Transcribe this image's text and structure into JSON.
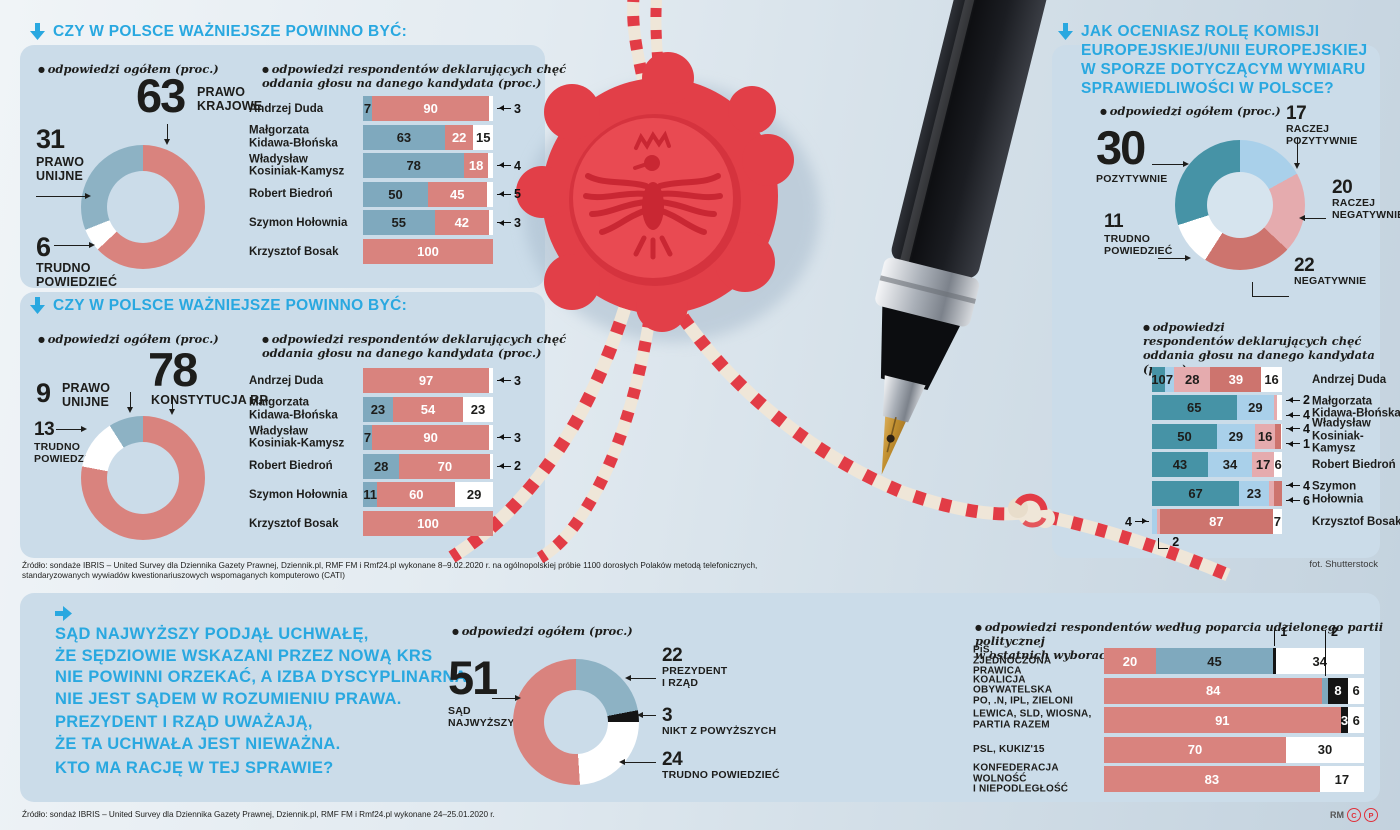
{
  "sections": {
    "law1": {
      "title": "CZY W POLSCE WAŻNIEJSZE POWINNO BYĆ:",
      "overall_note": "odpowiedzi ogółem (proc.)",
      "respondents_note": "odpowiedzi respondentów deklarujących chęć\noddania głosu na danego kandydata (proc.)"
    },
    "law2": {
      "title": "CZY W POLSCE WAŻNIEJSZE POWINNO BYĆ:",
      "overall_note": "odpowiedzi ogółem (proc.)",
      "respondents_note": "odpowiedzi respondentów deklarujących chęć\noddania głosu na danego kandydata (proc.)"
    },
    "eu": {
      "title": "JAK OCENIASZ ROLĘ KOMISJI\nEUROPEJSKIEJ/UNII EUROPEJSKIEJ\nW SPORZE DOTYCZĄCYM WYMIARU\nSPRAWIEDLIWOŚCI W POLSCE?",
      "overall_note": "odpowiedzi ogółem (proc.)",
      "respondents_note": "odpowiedzi\nrespondentów deklarujących chęć\noddania głosu na danego kandydata (proc.)"
    },
    "court": {
      "statement1": "SĄD NAJWYŻSZY PODJĄŁ UCHWAŁĘ,\nŻE SĘDZIOWIE WSKAZANI PRZEZ NOWĄ KRS\nNIE POWINNI ORZEKAĆ, A IZBA DYSCYPLINARNA\nNIE JEST SĄDEM W ROZUMIENIU PRAWA.",
      "statement2": "PREZYDENT I RZĄD UWAŻAJĄ,\nŻE TA UCHWAŁA JEST NIEWAŻNA.",
      "question": "KTO MA RACJĘ W TEJ SPRAWIE?",
      "overall_note": "odpowiedzi ogółem (proc.)",
      "party_note": "odpowiedzi respondentów według poparcia udzielonego partii politycznej\nw ostatnich wyborach do Sejmu – 13.10.2019 r. (proc.)"
    }
  },
  "footer": {
    "source1": "Źródło: sondaże IBRIS – United Survey dla Dziennika Gazety Prawnej, Dziennik.pl, RMF FM i Rmf24.pl wykonane 8–9.02.2020 r. na ogólnopolskiej próbie 1100 dorosłych Polaków metodą telefonicznych,\nstandaryzowanych wywiadów kwestionariuszowych wspomaganych komputerowo (CATI)",
    "photo_credit": "fot. Shutterstock",
    "source2": "Źródło: sondaż IBRIS – United Survey dla Dziennika Gazety Prawnej, Dziennik.pl, RMF FM i Rmf24.pl wykonane 24–25.01.2020 r.",
    "rm": "RM",
    "c_mark": "C",
    "p_mark": "P"
  },
  "palette": {
    "salmon": "#d9837e",
    "steel": "#7fa9be",
    "steelDonut": "#8db2c4",
    "white": "#ffffff",
    "teal": "#4693a6",
    "lightblue": "#a9d0ea",
    "pink": "#e5abae",
    "darksalmon": "#cd746e",
    "black": "#141414",
    "blue": "#8db2c4",
    "cyan": "#29a8e0",
    "panel": "#cbdce9",
    "seal_red": "#e23f48"
  },
  "chart_data": [
    {
      "id": "donut-law1",
      "type": "pie",
      "title": "CZY W POLSCE WAŻNIEJSZE POWINNO BYĆ: (odpowiedzi ogółem, proc.)",
      "slices": [
        {
          "label": "PRAWO\nKRAJOWE",
          "value": 63,
          "color": "salmon"
        },
        {
          "label": "TRUDNO\nPOWIEDZIEĆ",
          "value": 6,
          "color": "white"
        },
        {
          "label": "PRAWO\nUNIJNE",
          "value": 31,
          "color": "steelDonut"
        }
      ]
    },
    {
      "id": "bars-law1",
      "type": "bar",
      "stacked": true,
      "title": "odpowiedzi respondentów deklarujących chęć oddania głosu na danego kandydata (proc.)",
      "series": [
        {
          "name": "PRAWO UNIJNE",
          "color": "steel"
        },
        {
          "name": "PRAWO KRAJOWE",
          "color": "salmon"
        },
        {
          "name": "TRUDNO POWIEDZIEĆ",
          "color": "white"
        }
      ],
      "rows": [
        {
          "name": "Andrzej Duda",
          "cells": [
            {
              "v": 7
            },
            {
              "v": 90
            },
            {
              "v": 3,
              "d": "r1"
            }
          ]
        },
        {
          "name": "Małgorzata\nKidawa-Błońska",
          "cells": [
            {
              "v": 63
            },
            {
              "v": 22
            },
            {
              "v": 15
            }
          ]
        },
        {
          "name": "Władysław\nKosiniak-Kamysz",
          "cells": [
            {
              "v": 78
            },
            {
              "v": 18
            },
            {
              "v": 4,
              "d": "r1"
            }
          ]
        },
        {
          "name": "Robert Biedroń",
          "cells": [
            {
              "v": 50
            },
            {
              "v": 45
            },
            {
              "v": 5,
              "d": "r1"
            }
          ]
        },
        {
          "name": "Szymon Hołownia",
          "cells": [
            {
              "v": 55
            },
            {
              "v": 42
            },
            {
              "v": 3,
              "d": "r1"
            }
          ]
        },
        {
          "name": "Krzysztof Bosak",
          "cells": [
            {
              "v": 0
            },
            {
              "v": 100
            },
            {
              "v": 0
            }
          ]
        }
      ]
    },
    {
      "id": "donut-law2",
      "type": "pie",
      "title": "CZY W POLSCE WAŻNIEJSZE POWINNO BYĆ: (odpowiedzi ogółem, proc.)",
      "slices": [
        {
          "label": "KONSTYTUCJA RP",
          "value": 78,
          "color": "salmon"
        },
        {
          "label": "TRUDNO\nPOWIEDZIEĆ",
          "value": 13,
          "color": "white"
        },
        {
          "label": "PRAWO\nUNIJNE",
          "value": 9,
          "color": "steelDonut"
        }
      ]
    },
    {
      "id": "bars-law2",
      "type": "bar",
      "stacked": true,
      "title": "odpowiedzi respondentów deklarujących chęć oddania głosu na danego kandydata (proc.)",
      "series": [
        {
          "name": "PRAWO UNIJNE",
          "color": "steel"
        },
        {
          "name": "KONSTYTUCJA RP",
          "color": "salmon"
        },
        {
          "name": "TRUDNO POWIEDZIEĆ",
          "color": "white"
        }
      ],
      "rows": [
        {
          "name": "Andrzej Duda",
          "cells": [
            {
              "v": 0
            },
            {
              "v": 97
            },
            {
              "v": 3,
              "d": "r1"
            }
          ]
        },
        {
          "name": "Małgorzata\nKidawa-Błońska",
          "cells": [
            {
              "v": 23
            },
            {
              "v": 54
            },
            {
              "v": 23
            }
          ]
        },
        {
          "name": "Władysław\nKosiniak-Kamysz",
          "cells": [
            {
              "v": 7
            },
            {
              "v": 90
            },
            {
              "v": 3,
              "d": "r1"
            }
          ]
        },
        {
          "name": "Robert Biedroń",
          "cells": [
            {
              "v": 28
            },
            {
              "v": 70
            },
            {
              "v": 2,
              "d": "r1"
            }
          ]
        },
        {
          "name": "Szymon Hołownia",
          "cells": [
            {
              "v": 11
            },
            {
              "v": 60
            },
            {
              "v": 29
            }
          ]
        },
        {
          "name": "Krzysztof Bosak",
          "cells": [
            {
              "v": 0
            },
            {
              "v": 100
            },
            {
              "v": 0
            }
          ]
        }
      ]
    },
    {
      "id": "donut-eu",
      "type": "pie",
      "title": "JAK OCENIASZ ROLĘ KOMISJI EUROPEJSKIEJ/UNII EUROPEJSKIEJ W SPORZE DOTYCZĄCYM WYMIARU SPRAWIEDLIWOŚCI W POLSCE? (odpowiedzi ogółem, proc.)",
      "slices": [
        {
          "label": "RACZEJ POZYTYWNIE",
          "value": 17,
          "color": "lightblue"
        },
        {
          "label": "RACZEJ\nNEGATYWNIE",
          "value": 20,
          "color": "pink"
        },
        {
          "label": "NEGATYWNIE",
          "value": 22,
          "color": "darksalmon"
        },
        {
          "label": "TRUDNO\nPOWIEDZIEĆ",
          "value": 11,
          "color": "white"
        },
        {
          "label": "POZYTYWNIE",
          "value": 30,
          "color": "teal"
        }
      ]
    },
    {
      "id": "bars-eu",
      "type": "bar",
      "stacked": true,
      "title": "odpowiedzi respondentów deklarujących chęć oddania głosu na danego kandydata (proc.)",
      "series": [
        {
          "name": "POZYTYWNIE",
          "color": "teal"
        },
        {
          "name": "RACZEJ POZYTYWNIE",
          "color": "lightblue"
        },
        {
          "name": "RACZEJ NEGATYWNIE",
          "color": "pink"
        },
        {
          "name": "NEGATYWNIE",
          "color": "darksalmon"
        },
        {
          "name": "TRUDNO POWIEDZIEĆ",
          "color": "white"
        }
      ],
      "rows": [
        {
          "name": "Andrzej Duda",
          "cells": [
            {
              "v": 10
            },
            {
              "v": 7
            },
            {
              "v": 28
            },
            {
              "v": 39
            },
            {
              "v": 16
            }
          ]
        },
        {
          "name": "Małgorzata\nKidawa-Błońska",
          "cells": [
            {
              "v": 65
            },
            {
              "v": 29
            },
            {
              "v": 2,
              "d": "r1"
            },
            {
              "v": 0
            },
            {
              "v": 4,
              "d": "r2"
            }
          ]
        },
        {
          "name": "Władysław\nKosiniak-Kamysz",
          "cells": [
            {
              "v": 50
            },
            {
              "v": 29
            },
            {
              "v": 16
            },
            {
              "v": 4,
              "d": "r1"
            },
            {
              "v": 1,
              "d": "r2"
            }
          ]
        },
        {
          "name": "Robert Biedroń",
          "cells": [
            {
              "v": 43
            },
            {
              "v": 34
            },
            {
              "v": 17
            },
            {
              "v": 0
            },
            {
              "v": 6
            }
          ]
        },
        {
          "name": "Szymon\nHołownia",
          "cells": [
            {
              "v": 67
            },
            {
              "v": 23
            },
            {
              "v": 4,
              "d": "r1"
            },
            {
              "v": 6,
              "d": "r2"
            },
            {
              "v": 0
            }
          ]
        },
        {
          "name": "Krzysztof Bosak",
          "cells": [
            {
              "v": 0
            },
            {
              "v": 4,
              "d": "left"
            },
            {
              "v": 2,
              "d": "below"
            },
            {
              "v": 87
            },
            {
              "v": 7
            }
          ]
        }
      ]
    },
    {
      "id": "donut-court",
      "type": "pie",
      "title": "KTO MA RACJĘ W TEJ SPRAWIE? (odpowiedzi ogółem, proc.)",
      "slices": [
        {
          "label": "PREZYDENT\nI RZĄD",
          "value": 22,
          "color": "blue"
        },
        {
          "label": "NIKT Z POWYŻSZYCH",
          "value": 3,
          "color": "black"
        },
        {
          "label": "TRUDNO POWIEDZIEĆ",
          "value": 24,
          "color": "white"
        },
        {
          "label": "SĄD\nNAJWYŻSZY",
          "value": 51,
          "color": "salmon"
        }
      ]
    },
    {
      "id": "bars-court",
      "type": "bar",
      "stacked": true,
      "title": "odpowiedzi respondentów według poparcia udzielonego partii politycznej w ostatnich wyborach do Sejmu – 13.10.2019 r. (proc.)",
      "series": [
        {
          "name": "SĄD NAJWYŻSZY",
          "color": "salmon"
        },
        {
          "name": "PREZYDENT I RZĄD",
          "color": "steel"
        },
        {
          "name": "NIKT Z POWYŻSZYCH",
          "color": "black"
        },
        {
          "name": "TRUDNO POWIEDZIEĆ",
          "color": "white"
        }
      ],
      "rows": [
        {
          "name": "PiS,\nZJEDNOCZONA PRAWICA",
          "cells": [
            {
              "v": 20
            },
            {
              "v": 45
            },
            {
              "v": 1,
              "d": "above"
            },
            {
              "v": 34
            }
          ]
        },
        {
          "name": "KOALICJA OBYWATELSKA\nPO, .N, IPL, ZIELONI",
          "cells": [
            {
              "v": 84
            },
            {
              "v": 2,
              "d": "above"
            },
            {
              "v": 8
            },
            {
              "v": 6
            }
          ]
        },
        {
          "name": "LEWICA, SLD, WIOSNA,\nPARTIA RAZEM",
          "cells": [
            {
              "v": 91
            },
            {
              "v": 0
            },
            {
              "v": 3
            },
            {
              "v": 6
            }
          ]
        },
        {
          "name": "PSL, KUKIZ'15",
          "cells": [
            {
              "v": 70
            },
            {
              "v": 0
            },
            {
              "v": 0
            },
            {
              "v": 30
            }
          ]
        },
        {
          "name": "KONFEDERACJA\nWOLNOŚĆ\nI NIEPODLEGŁOŚĆ",
          "cells": [
            {
              "v": 83
            },
            {
              "v": 0
            },
            {
              "v": 0
            },
            {
              "v": 17
            }
          ]
        }
      ]
    }
  ]
}
